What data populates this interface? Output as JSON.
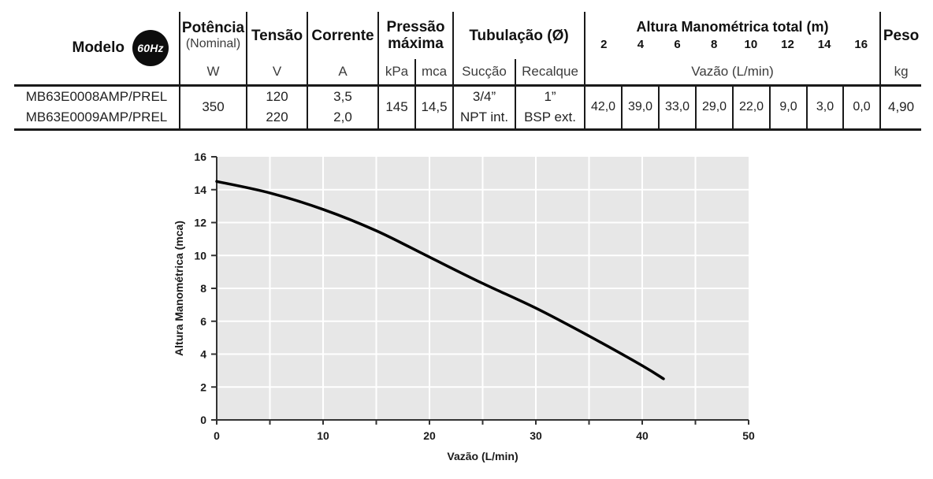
{
  "table": {
    "modelo_label": "Modelo",
    "badge": "60Hz",
    "col_potencia": {
      "title": "Potência",
      "subtitle": "(Nominal)",
      "unit": "W"
    },
    "col_tensao": {
      "title": "Tensão",
      "unit": "V"
    },
    "col_corrente": {
      "title": "Corrente",
      "unit": "A"
    },
    "col_pressao": {
      "title_line1": "Pressão",
      "title_line2": "máxima",
      "unit_kpa": "kPa",
      "unit_mca": "mca"
    },
    "col_tubulacao": {
      "title": "Tubulação (Ø)",
      "sub_succao": "Sucção",
      "sub_recalque": "Recalque"
    },
    "col_altura": {
      "title": "Altura Manométrica total (m)",
      "heads": [
        "2",
        "4",
        "6",
        "8",
        "10",
        "12",
        "14",
        "16"
      ],
      "unit_row": "Vazão (L/min)"
    },
    "col_peso": {
      "title": "Peso",
      "unit": "kg"
    },
    "row1": {
      "model": "MB63E0008AMP/PREL",
      "tensao": "120",
      "corrente": "3,5",
      "succao": "3/4”",
      "recalque": "1”"
    },
    "row2": {
      "model": "MB63E0009AMP/PREL",
      "tensao": "220",
      "corrente": "2,0",
      "succao": "NPT int.",
      "recalque": "BSP ext."
    },
    "shared": {
      "potencia": "350",
      "kpa": "145",
      "mca": "14,5",
      "peso": "4,90",
      "vazoes": [
        "42,0",
        "39,0",
        "33,0",
        "29,0",
        "22,0",
        "9,0",
        "3,0",
        "0,0"
      ]
    }
  },
  "chart_data": {
    "type": "line",
    "title": "",
    "xlabel": "Vazão (L/min)",
    "ylabel": "Altura Manométrica (mca)",
    "xlim": [
      0,
      50
    ],
    "ylim": [
      0,
      16
    ],
    "xticks": [
      0,
      10,
      20,
      30,
      40,
      50
    ],
    "yticks": [
      0,
      2,
      4,
      6,
      8,
      10,
      12,
      14,
      16
    ],
    "x_minor_tick_step": 5,
    "grid": {
      "vertical_step": 5,
      "horizontal_step": 2,
      "color": "#ffffff"
    },
    "plot_bg": "#e7e7e7",
    "axis_color": "#333333",
    "line_color": "#000000",
    "legend": "none",
    "series": [
      {
        "name": "MB63E0008AMP/PREL",
        "points": [
          [
            0,
            14.5
          ],
          [
            5,
            13.8
          ],
          [
            10,
            12.8
          ],
          [
            15,
            11.5
          ],
          [
            20,
            9.9
          ],
          [
            25,
            8.3
          ],
          [
            30,
            6.8
          ],
          [
            35,
            5.1
          ],
          [
            40,
            3.3
          ],
          [
            42,
            2.5
          ]
        ]
      }
    ]
  }
}
